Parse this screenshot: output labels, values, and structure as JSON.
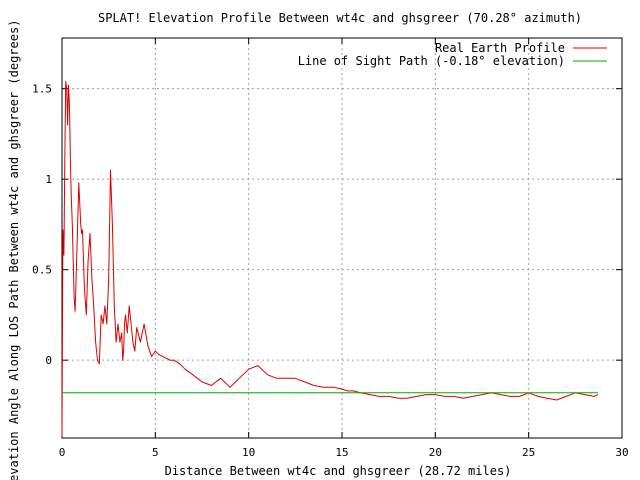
{
  "chart_data": {
    "type": "line",
    "title": "SPLAT! Elevation Profile Between wt4c and ghsgreer (70.28° azimuth)",
    "xlabel": "Distance Between wt4c and ghsgreer (28.72 miles)",
    "ylabel": "Elevation Angle Along LOS Path Between wt4c and ghsgreer (degrees)",
    "xlim": [
      0,
      30
    ],
    "ylim": [
      -0.43,
      1.78
    ],
    "x_ticks": [
      0,
      5,
      10,
      15,
      20,
      25,
      30
    ],
    "x_tick_labels": [
      "0",
      "5",
      "10",
      "15",
      "20",
      "25",
      "30"
    ],
    "y_ticks": [
      -0.0,
      0.5,
      1.0,
      1.5
    ],
    "y_tick_labels": [
      "0",
      "0.5",
      "1",
      "1.5"
    ],
    "grid": true,
    "legend_position": "top-right",
    "series": [
      {
        "name": "Real Earth Profile",
        "color": "#dd0000",
        "x": [
          0.0,
          0.05,
          0.1,
          0.15,
          0.2,
          0.25,
          0.3,
          0.35,
          0.4,
          0.45,
          0.5,
          0.55,
          0.6,
          0.65,
          0.7,
          0.8,
          0.9,
          1.0,
          1.05,
          1.1,
          1.2,
          1.3,
          1.4,
          1.5,
          1.6,
          1.7,
          1.8,
          1.9,
          2.0,
          2.1,
          2.2,
          2.3,
          2.4,
          2.5,
          2.6,
          2.7,
          2.8,
          2.9,
          3.0,
          3.1,
          3.2,
          3.25,
          3.3,
          3.35,
          3.4,
          3.5,
          3.6,
          3.7,
          3.8,
          3.9,
          4.0,
          4.2,
          4.4,
          4.6,
          4.8,
          5.0,
          5.2,
          5.4,
          5.6,
          5.8,
          6.0,
          6.3,
          6.6,
          7.0,
          7.5,
          8.0,
          8.5,
          9.0,
          9.5,
          10.0,
          10.5,
          11.0,
          11.5,
          12.0,
          12.5,
          13.0,
          13.5,
          14.0,
          14.3,
          14.6,
          15.0,
          15.3,
          15.6,
          16.0,
          16.5,
          17.0,
          17.5,
          18.0,
          18.5,
          19.0,
          19.5,
          20.0,
          20.5,
          21.0,
          21.5,
          22.0,
          22.5,
          23.0,
          23.5,
          24.0,
          24.5,
          25.0,
          25.5,
          26.0,
          26.5,
          27.0,
          27.5,
          28.0,
          28.5,
          28.72
        ],
        "values": [
          -0.42,
          0.72,
          0.58,
          1.1,
          1.54,
          1.5,
          1.3,
          1.52,
          1.4,
          1.1,
          0.9,
          0.75,
          0.55,
          0.35,
          0.27,
          0.6,
          0.98,
          0.75,
          0.7,
          0.72,
          0.4,
          0.25,
          0.55,
          0.7,
          0.45,
          0.3,
          0.1,
          0.0,
          -0.02,
          0.25,
          0.2,
          0.3,
          0.2,
          0.45,
          1.05,
          0.75,
          0.3,
          0.1,
          0.2,
          0.1,
          0.15,
          0.0,
          0.05,
          0.2,
          0.25,
          0.15,
          0.3,
          0.2,
          0.1,
          0.05,
          0.18,
          0.1,
          0.2,
          0.08,
          0.02,
          0.05,
          0.03,
          0.02,
          0.01,
          0.0,
          0.0,
          -0.02,
          -0.05,
          -0.08,
          -0.12,
          -0.14,
          -0.1,
          -0.15,
          -0.1,
          -0.05,
          -0.03,
          -0.08,
          -0.1,
          -0.1,
          -0.1,
          -0.12,
          -0.14,
          -0.15,
          -0.15,
          -0.15,
          -0.16,
          -0.17,
          -0.17,
          -0.18,
          -0.19,
          -0.2,
          -0.2,
          -0.21,
          -0.21,
          -0.2,
          -0.19,
          -0.19,
          -0.2,
          -0.2,
          -0.21,
          -0.2,
          -0.19,
          -0.18,
          -0.19,
          -0.2,
          -0.2,
          -0.18,
          -0.2,
          -0.21,
          -0.22,
          -0.2,
          -0.18,
          -0.19,
          -0.2,
          -0.19
        ]
      },
      {
        "name": "Line of Sight Path (-0.18° elevation)",
        "color": "#00aa00",
        "x": [
          0,
          28.72
        ],
        "values": [
          -0.18,
          -0.18
        ]
      }
    ]
  }
}
